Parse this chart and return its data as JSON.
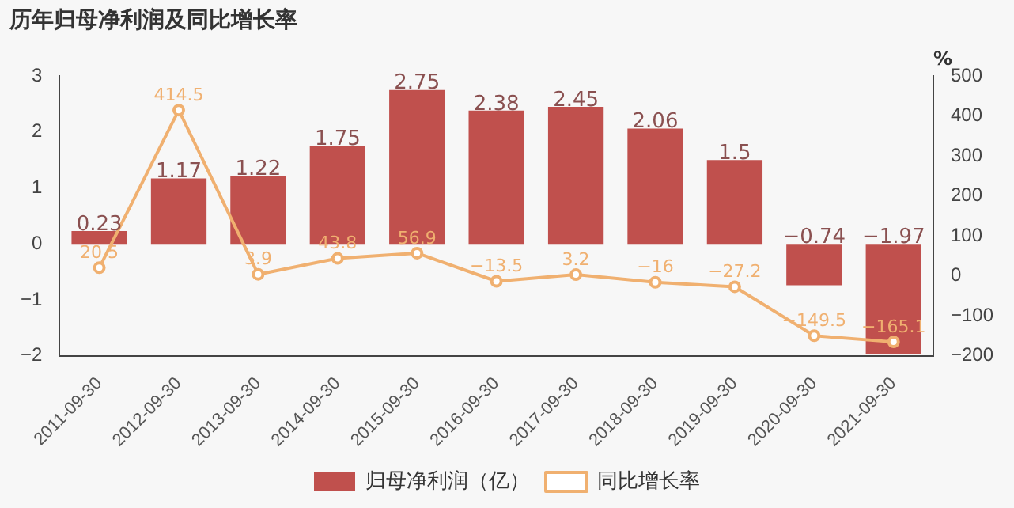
{
  "chart_data": {
    "type": "bar",
    "title": "历年归母净利润及同比增长率",
    "y2label": "%",
    "categories": [
      "2011-09-30",
      "2012-09-30",
      "2013-09-30",
      "2014-09-30",
      "2015-09-30",
      "2016-09-30",
      "2017-09-30",
      "2018-09-30",
      "2019-09-30",
      "2020-09-30",
      "2021-09-30"
    ],
    "series": [
      {
        "name": "归母净利润（亿）",
        "color": "#c0504d",
        "values": [
          0.23,
          1.17,
          1.22,
          1.75,
          2.75,
          2.38,
          2.45,
          2.06,
          1.5,
          -0.74,
          -1.97
        ]
      },
      {
        "name": "同比增长率",
        "type": "line",
        "axis": "y2",
        "color": "#f0b070",
        "values": [
          20.5,
          414.5,
          3.9,
          43.8,
          56.9,
          -13.5,
          3.2,
          -16,
          -27.2,
          -149.5,
          -165.1
        ]
      }
    ],
    "ylim": [
      -2,
      3
    ],
    "yticks": [
      -2,
      -1,
      0,
      1,
      2,
      3
    ],
    "y2lim": [
      -200,
      500
    ],
    "y2ticks": [
      -200,
      -100,
      0,
      100,
      200,
      300,
      400,
      500
    ],
    "data_labels": true,
    "legend": "bottom",
    "grid": false,
    "marker": "circle",
    "line_style": "solid"
  }
}
